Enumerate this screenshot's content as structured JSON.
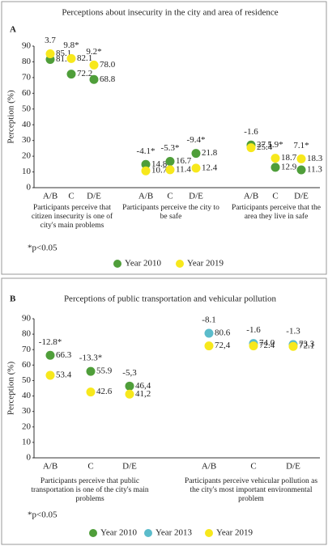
{
  "chart_data": [
    {
      "type": "dot",
      "panel": "A",
      "title": "Perceptions about insecurity in the city and area of residence",
      "y_label": "Perception (%)",
      "ylim": [
        0,
        90
      ],
      "yticks": [
        0,
        10,
        20,
        30,
        40,
        50,
        60,
        70,
        80,
        90
      ],
      "categories": [
        "A/B",
        "C",
        "D/E",
        "A/B",
        "C",
        "D/E",
        "A/B",
        "C",
        "D/E"
      ],
      "annotations": [
        "3.7",
        "9.8*",
        "9.2*",
        "-4.1*",
        "-5.3*",
        "-9.4*",
        "-1.6",
        "5.9*",
        "7.1*"
      ],
      "group_labels": [
        "Participants perceive that citizen insecurity is one of city's main problems",
        "Participants perceive the city to be safe",
        "Participants perceive that the area they live in  safe"
      ],
      "footnote": "*p<0.05",
      "series": [
        {
          "name": "Year 2010",
          "color": "#4f9e3a",
          "values": [
            81.5,
            72.2,
            68.8,
            14.8,
            16.7,
            21.8,
            27.1,
            12.9,
            11.3
          ],
          "value_labels": [
            "81.5",
            "72.2",
            "68.8",
            "14.8",
            "16.7",
            "21.8",
            "27.1",
            "12.9",
            "11.3"
          ]
        },
        {
          "name": "Year 2019",
          "color": "#f7e81c",
          "values": [
            85.1,
            82.1,
            78.0,
            10.7,
            11.4,
            12.4,
            25.4,
            18.7,
            18.3
          ],
          "value_labels": [
            "85.1",
            "82.1",
            "78.0",
            "10.7",
            "11.4",
            "12.4",
            "25.4",
            "18.7",
            "18.3"
          ]
        }
      ]
    },
    {
      "type": "dot",
      "panel": "B",
      "title": "Perceptions of public transportation and vehicular pollution",
      "y_label": "Perception (%)",
      "ylim": [
        0,
        90
      ],
      "yticks": [
        0,
        10,
        20,
        30,
        40,
        50,
        60,
        70,
        80,
        90
      ],
      "categories": [
        "A/B",
        "C",
        "D/E",
        "A/B",
        "C",
        "D/E"
      ],
      "annotations": [
        "-12.8*",
        "-13.3*",
        "-5,3",
        "-8.1",
        "-1.6",
        "-1.3"
      ],
      "group_labels": [
        "Participants perceive that public transportation is one of the city's main problems",
        "Participants perceive vehicular pollution as the city's most important environmental problem"
      ],
      "footnote": "*p<0.05",
      "series": [
        {
          "name": "Year 2010",
          "color": "#4f9e3a",
          "values": [
            66.3,
            55.9,
            46.4,
            null,
            null,
            null
          ],
          "value_labels": [
            "66.3",
            "55.9",
            "46,4",
            null,
            null,
            null
          ]
        },
        {
          "name": "Year 2013",
          "color": "#5bbccb",
          "values": [
            null,
            null,
            null,
            80.6,
            74.0,
            73.3
          ],
          "value_labels": [
            null,
            null,
            null,
            "80.6",
            "74.0",
            "73.3"
          ]
        },
        {
          "name": "Year 2019",
          "color": "#f7e81c",
          "values": [
            53.4,
            42.6,
            41.2,
            72.4,
            72.4,
            72.1
          ],
          "value_labels": [
            "53.4",
            "42.6",
            "41,2",
            "72,4",
            "72.4",
            "72.1"
          ]
        }
      ]
    }
  ]
}
